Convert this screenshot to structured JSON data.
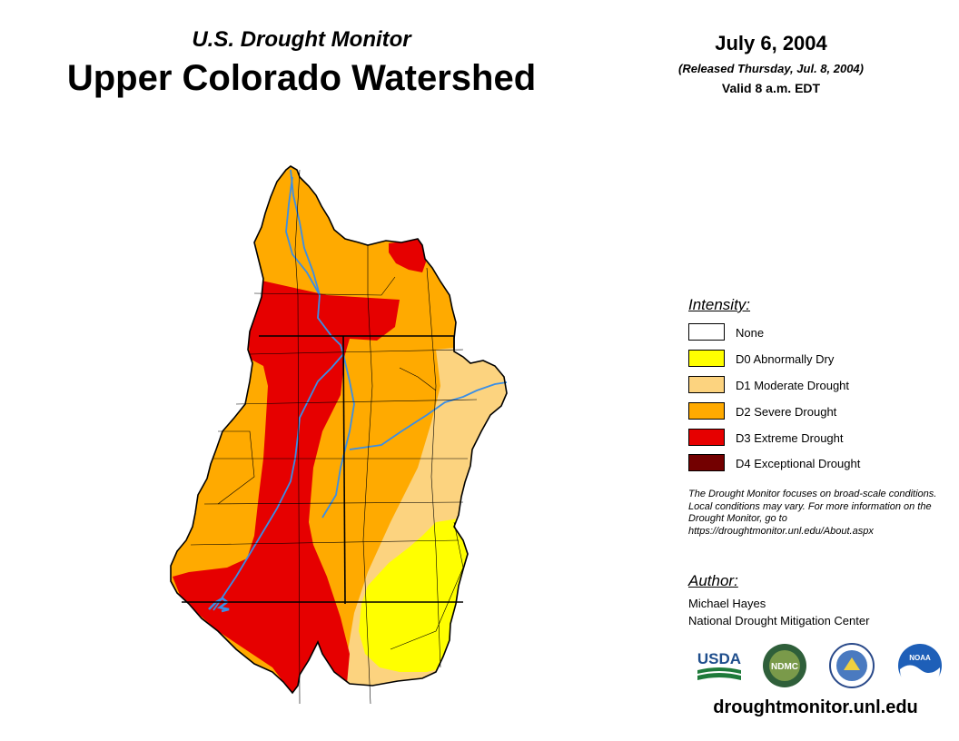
{
  "header": {
    "subtitle": "U.S. Drought Monitor",
    "title": "Upper Colorado Watershed",
    "date": "July 6, 2004",
    "released": "(Released Thursday, Jul. 8, 2004)",
    "valid": "Valid 8 a.m. EDT"
  },
  "legend": {
    "heading": "Intensity:",
    "items": [
      {
        "label": "None",
        "color": "#ffffff"
      },
      {
        "label": "D0 Abnormally Dry",
        "color": "#ffff00"
      },
      {
        "label": "D1 Moderate Drought",
        "color": "#fcd37f"
      },
      {
        "label": "D2 Severe Drought",
        "color": "#ffaa00"
      },
      {
        "label": "D3 Extreme Drought",
        "color": "#e60000"
      },
      {
        "label": "D4 Exceptional Drought",
        "color": "#730000"
      }
    ]
  },
  "note": "The Drought Monitor focuses on broad-scale conditions. Local conditions may vary. For more information on the Drought Monitor, go to https://droughtmonitor.unl.edu/About.aspx",
  "author": {
    "heading": "Author:",
    "name": "Michael Hayes",
    "org": "National Drought Mitigation Center"
  },
  "logos": {
    "usda": "USDA",
    "ndmc": "NDMC",
    "noaa": "NOAA"
  },
  "website": "droughtmonitor.unl.edu",
  "map_colors": {
    "river": "#3a8ee6",
    "border": "#000000"
  }
}
